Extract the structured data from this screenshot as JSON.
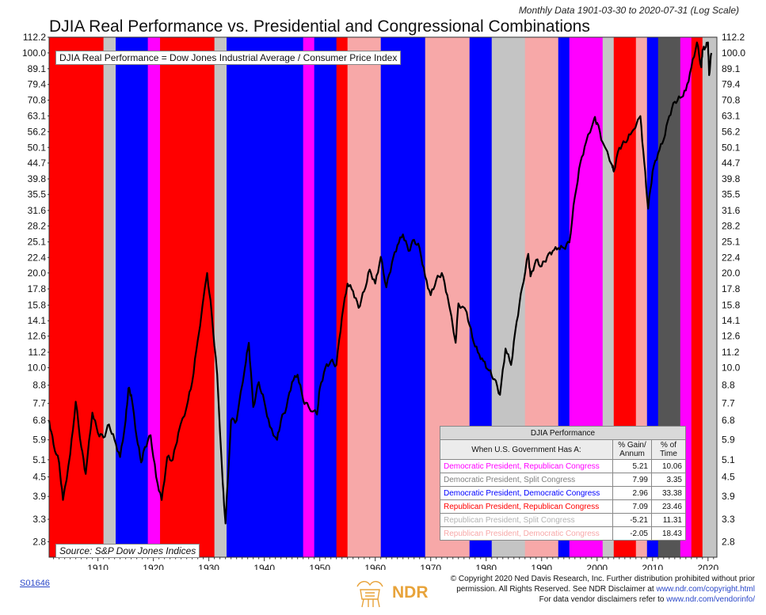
{
  "header": {
    "subtitle": "Monthly Data 1901-03-30 to 2020-07-31 (Log Scale)",
    "title": "DJIA Real Performance vs. Presidential and Congressional Combinations"
  },
  "legend_note": "DJIA Real Performance = Dow Jones Industrial Average / Consumer Price Index",
  "source": "Source:   S&P Dow Jones Indices",
  "colors": {
    "dem_pres_rep_cong": "#ff00ff",
    "dem_pres_split": "#999999",
    "dem_pres_dem_cong": "#0000ff",
    "rep_pres_rep_cong": "#ff0000",
    "rep_pres_split": "#c4c4c4",
    "rep_pres_dem_cong": "#f7a8a8",
    "split_dark": "#555555",
    "line": "#000000"
  },
  "chart_data": {
    "type": "line",
    "y_scale": "log",
    "ylim": [
      2.5,
      112.2
    ],
    "xlim": [
      1901.2,
      2021.6
    ],
    "y_ticks": [
      "112.2",
      "100.0",
      "89.1",
      "79.4",
      "70.8",
      "63.1",
      "56.2",
      "50.1",
      "44.7",
      "39.8",
      "35.5",
      "31.6",
      "28.2",
      "25.1",
      "22.4",
      "20.0",
      "17.8",
      "15.8",
      "14.1",
      "12.6",
      "11.2",
      "10.0",
      "8.8",
      "7.7",
      "6.8",
      "5.9",
      "5.1",
      "4.5",
      "3.9",
      "3.3",
      "2.8"
    ],
    "x_ticks": [
      "1910",
      "1920",
      "1930",
      "1940",
      "1950",
      "1960",
      "1970",
      "1980",
      "1990",
      "2000",
      "2010",
      "2020"
    ],
    "regimes": [
      {
        "start": 1901.2,
        "end": 1911.0,
        "type": "rep_pres_rep_cong"
      },
      {
        "start": 1911.0,
        "end": 1913.2,
        "type": "rep_pres_split"
      },
      {
        "start": 1913.2,
        "end": 1919.0,
        "type": "dem_pres_dem_cong"
      },
      {
        "start": 1919.0,
        "end": 1921.2,
        "type": "dem_pres_rep_cong"
      },
      {
        "start": 1921.2,
        "end": 1931.0,
        "type": "rep_pres_rep_cong"
      },
      {
        "start": 1931.0,
        "end": 1933.2,
        "type": "rep_pres_split"
      },
      {
        "start": 1933.2,
        "end": 1947.0,
        "type": "dem_pres_dem_cong"
      },
      {
        "start": 1947.0,
        "end": 1949.0,
        "type": "dem_pres_rep_cong"
      },
      {
        "start": 1949.0,
        "end": 1953.0,
        "type": "dem_pres_dem_cong"
      },
      {
        "start": 1953.0,
        "end": 1955.0,
        "type": "rep_pres_rep_cong"
      },
      {
        "start": 1955.0,
        "end": 1961.0,
        "type": "rep_pres_dem_cong"
      },
      {
        "start": 1961.0,
        "end": 1969.0,
        "type": "dem_pres_dem_cong"
      },
      {
        "start": 1969.0,
        "end": 1977.0,
        "type": "rep_pres_dem_cong"
      },
      {
        "start": 1977.0,
        "end": 1981.0,
        "type": "dem_pres_dem_cong"
      },
      {
        "start": 1981.0,
        "end": 1987.0,
        "type": "rep_pres_split"
      },
      {
        "start": 1987.0,
        "end": 1993.0,
        "type": "rep_pres_dem_cong"
      },
      {
        "start": 1993.0,
        "end": 1995.0,
        "type": "dem_pres_dem_cong"
      },
      {
        "start": 1995.0,
        "end": 2001.0,
        "type": "dem_pres_rep_cong"
      },
      {
        "start": 2001.0,
        "end": 2003.0,
        "type": "rep_pres_split"
      },
      {
        "start": 2003.0,
        "end": 2007.0,
        "type": "rep_pres_rep_cong"
      },
      {
        "start": 2007.0,
        "end": 2009.0,
        "type": "rep_pres_dem_cong"
      },
      {
        "start": 2009.0,
        "end": 2011.0,
        "type": "dem_pres_dem_cong"
      },
      {
        "start": 2011.0,
        "end": 2015.0,
        "type": "split_dark"
      },
      {
        "start": 2015.0,
        "end": 2017.0,
        "type": "dem_pres_rep_cong"
      },
      {
        "start": 2017.0,
        "end": 2019.0,
        "type": "rep_pres_rep_cong"
      },
      {
        "start": 2019.0,
        "end": 2021.6,
        "type": "rep_pres_split"
      }
    ],
    "series": [
      {
        "x": [
          1901.2,
          1902.0,
          1903.0,
          1903.7,
          1905.0,
          1906.0,
          1907.0,
          1907.8,
          1909.0,
          1910.0,
          1911.0,
          1912.0,
          1913.0,
          1914.0,
          1915.0,
          1915.5,
          1916.0,
          1917.0,
          1917.8,
          1918.5,
          1919.5,
          1920.5,
          1921.5,
          1922.5,
          1923.5,
          1924.5,
          1926.0,
          1927.0,
          1928.0,
          1929.7,
          1930.5,
          1931.5,
          1932.5,
          1933.0,
          1934.0,
          1935.0,
          1936.5,
          1937.2,
          1938.0,
          1939.0,
          1940.0,
          1941.0,
          1942.3,
          1943.0,
          1944.0,
          1945.0,
          1946.0,
          1947.0,
          1948.0,
          1949.5,
          1950.0,
          1951.0,
          1952.0,
          1953.0,
          1954.0,
          1955.0,
          1956.0,
          1957.0,
          1958.0,
          1959.0,
          1960.0,
          1961.0,
          1962.0,
          1963.0,
          1964.0,
          1965.0,
          1966.0,
          1967.0,
          1968.0,
          1969.0,
          1970.0,
          1971.0,
          1972.0,
          1973.0,
          1974.5,
          1975.0,
          1976.5,
          1977.5,
          1978.5,
          1979.5,
          1980.5,
          1981.5,
          1982.5,
          1983.5,
          1984.5,
          1985.5,
          1986.5,
          1987.6,
          1988.0,
          1989.0,
          1990.0,
          1991.0,
          1992.0,
          1993.0,
          1994.0,
          1995.0,
          1996.0,
          1997.0,
          1998.0,
          1999.5,
          2000.0,
          2001.0,
          2002.7,
          2003.0,
          2004.0,
          2005.0,
          2006.0,
          2007.8,
          2008.5,
          2009.2,
          2010.0,
          2011.0,
          2012.0,
          2013.0,
          2014.0,
          2015.0,
          2016.0,
          2017.0,
          2018.0,
          2018.8,
          2019.0,
          2019.5,
          2020.0,
          2020.2,
          2020.6
        ],
        "y": [
          6.8,
          5.7,
          5.0,
          3.8,
          5.3,
          7.8,
          5.6,
          4.6,
          7.2,
          6.2,
          6.0,
          6.6,
          5.9,
          5.2,
          6.8,
          8.6,
          8.2,
          6.0,
          5.0,
          5.6,
          6.1,
          4.5,
          3.8,
          5.2,
          5.1,
          6.2,
          7.5,
          9.0,
          12.2,
          20.0,
          15.0,
          9.5,
          4.3,
          3.2,
          6.8,
          6.8,
          10.0,
          12.0,
          7.5,
          9.0,
          7.8,
          6.5,
          5.9,
          6.8,
          7.5,
          9.0,
          9.5,
          7.9,
          7.5,
          7.1,
          8.6,
          10.0,
          10.5,
          10.2,
          14.5,
          18.5,
          17.5,
          15.5,
          17.5,
          20.5,
          18.5,
          22.5,
          18.0,
          21.5,
          24.5,
          26.5,
          23.5,
          25.5,
          24.0,
          19.5,
          17.0,
          19.0,
          20.0,
          17.0,
          12.0,
          16.0,
          15.0,
          12.5,
          11.2,
          10.5,
          9.8,
          9.2,
          8.2,
          11.5,
          10.2,
          14.0,
          18.0,
          23.0,
          19.5,
          22.0,
          21.0,
          22.5,
          23.5,
          24.0,
          24.0,
          25.0,
          35.0,
          45.0,
          52.0,
          62.0,
          60.0,
          52.0,
          44.0,
          42.0,
          50.0,
          52.0,
          55.0,
          63.0,
          45.0,
          32.0,
          42.0,
          48.0,
          53.0,
          63.0,
          70.0,
          72.0,
          76.0,
          90.0,
          108.0,
          90.0,
          102.0,
          104.0,
          108.0,
          85.0,
          100.0
        ]
      }
    ],
    "table": {
      "title": "DJIA Performance",
      "headers": [
        "When U.S. Government Has A:",
        "% Gain/ Annum",
        "% of Time"
      ],
      "rows": [
        {
          "label": "Democratic President, Republican Congress",
          "gain": "5.21",
          "time": "10.06",
          "color": "#ff00ff"
        },
        {
          "label": "Democratic President, Split Congress",
          "gain": "7.99",
          "time": "3.35",
          "color": "#7f7f7f"
        },
        {
          "label": "Democratic President, Democratic Congress",
          "gain": "2.96",
          "time": "33.38",
          "color": "#0000ff"
        },
        {
          "label": "Republican President, Republican Congress",
          "gain": "7.09",
          "time": "23.46",
          "color": "#ff0000"
        },
        {
          "label": "Republican President, Split Congress",
          "gain": "-5.21",
          "time": "11.31",
          "color": "#b3b3b3"
        },
        {
          "label": "Republican President, Democratic Congress",
          "gain": "-2.05",
          "time": "18.43",
          "color": "#f7a8a8"
        }
      ]
    }
  },
  "footer": {
    "code": "S01646",
    "logo_text": "NDR",
    "copyright_line1": "© Copyright 2020 Ned Davis Research, Inc. Further distribution prohibited without prior",
    "copyright_line2_a": "permission. All Rights Reserved. See NDR Disclaimer at ",
    "copyright_line2_link": "www.ndr.com/copyright.html",
    "copyright_line3_a": "For data vendor disclaimers refer to ",
    "copyright_line3_link": "www.ndr.com/vendorinfo/"
  }
}
